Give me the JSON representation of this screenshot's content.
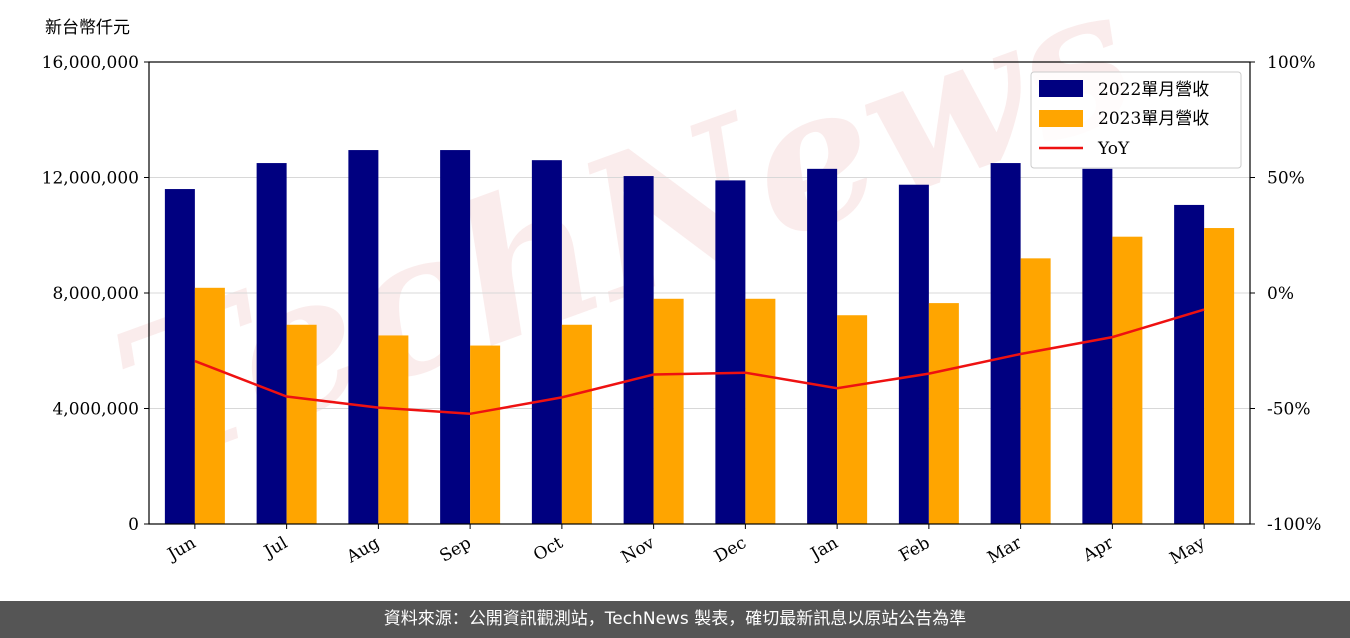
{
  "chart_data": {
    "type": "bar",
    "y_unit_label": "新台幣仟元",
    "categories": [
      "Jun",
      "Jul",
      "Aug",
      "Sep",
      "Oct",
      "Nov",
      "Dec",
      "Jan",
      "Feb",
      "Mar",
      "Apr",
      "May"
    ],
    "series": [
      {
        "name": "2022單月營收",
        "color": "#000080",
        "values": [
          11600000,
          12500000,
          12950000,
          12950000,
          12600000,
          12050000,
          11900000,
          12300000,
          11750000,
          12500000,
          12300000,
          11050000
        ]
      },
      {
        "name": "2023單月營收",
        "color": "#FFA500",
        "values": [
          8180000,
          6900000,
          6530000,
          6180000,
          6900000,
          7800000,
          7800000,
          7230000,
          7650000,
          9200000,
          9950000,
          10250000
        ]
      }
    ],
    "line_series": {
      "name": "YoY",
      "color": "#EE1111",
      "axis": "right",
      "values": [
        -29.5,
        -44.8,
        -49.6,
        -52.3,
        -45.2,
        -35.3,
        -34.5,
        -41.2,
        -34.9,
        -26.4,
        -19.1,
        -7.2
      ]
    },
    "ylim_left": [
      0,
      16000000
    ],
    "yticks_left": [
      "0",
      "4,000,000",
      "8,000,000",
      "12,000,000",
      "16,000,000"
    ],
    "ylim_right": [
      -100,
      100
    ],
    "yticks_right": [
      "-100%",
      "-50%",
      "0%",
      "50%",
      "100%"
    ],
    "grid": "horizontal",
    "legend": "top-right"
  },
  "watermark": "TechNews",
  "footer": "資料來源：公開資訊觀測站，TechNews 製表，確切最新訊息以原站公告為準"
}
